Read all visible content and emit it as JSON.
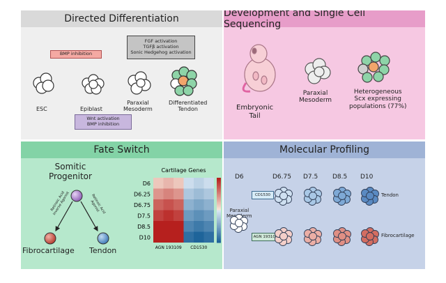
{
  "panels": {
    "directed": {
      "title": "Directed Differentiation",
      "bmp_inhibition": "BMP inhibition",
      "activation_box": [
        "FGF activation",
        "TGFβ activation",
        "Sonic Hedgehog activation"
      ],
      "wnt_box": [
        "Wnt activation",
        "BMP inhibition"
      ],
      "stages": [
        "ESC",
        "Epiblast",
        "Paraxial\nMesoderm",
        "Differentiated\nTendon"
      ]
    },
    "development": {
      "title": "Development and Single Cell Sequencing",
      "labels": [
        "Embryonic\nTail",
        "Paraxial\nMesoderm",
        "Heterogeneous\nScx expressing\npopulations (77%)"
      ]
    },
    "fate": {
      "title": "Fate Switch",
      "progenitor": "Somitic\nProgenitor",
      "arrow_left": "Retinoic Acid\nInverse Agonist",
      "arrow_right": "Retinoic Acid\nAgonist",
      "fibrocartilage": "Fibrocartilage",
      "tendon": "Tendon"
    },
    "molecular": {
      "title": "Molecular Profiling",
      "timepoints": [
        "D6",
        "D6.75",
        "D7.5",
        "D8.5",
        "D10"
      ],
      "cd_label": "CD1530",
      "agn_label": "AGN 193109",
      "paraxial": "Paraxial\nMesoderm",
      "tendon": "Tendon",
      "fibrocartilage": "Fibrocartilage"
    }
  },
  "chart_data": {
    "type": "heatmap",
    "title": "Cartilage Genes",
    "rows": [
      "D6",
      "D6.25",
      "D6.75",
      "D7.5",
      "D8.5",
      "D10"
    ],
    "columns": [
      "AGN 193109",
      "CD1530"
    ],
    "sub_columns_per_group": 3,
    "values": [
      [
        0.2,
        0.3,
        0.2,
        -0.1,
        -0.2,
        -0.1
      ],
      [
        0.5,
        0.6,
        0.5,
        -0.3,
        -0.4,
        -0.3
      ],
      [
        0.8,
        0.9,
        0.8,
        -0.5,
        -0.6,
        -0.5
      ],
      [
        1.0,
        1.1,
        1.0,
        -0.7,
        -0.8,
        -0.7
      ],
      [
        1.3,
        1.4,
        1.3,
        -0.9,
        -1.0,
        -0.9
      ],
      [
        1.6,
        1.7,
        1.6,
        -1.1,
        -1.2,
        -1.1
      ]
    ],
    "colorbar_ticks": [
      "1.2",
      "0.6",
      "0.0",
      "-0.6",
      "-1.2"
    ],
    "vmin": -1.2,
    "vmax": 1.2
  }
}
